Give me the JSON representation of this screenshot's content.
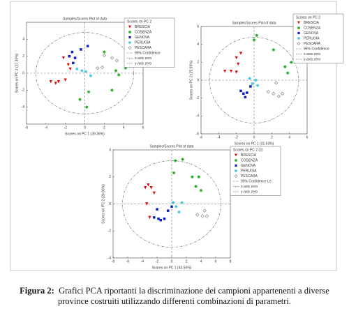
{
  "chart_data": [
    {
      "type": "scatter",
      "title": "Samples/Scores Plot of data",
      "xlabel": "Scores on PC 1 (39.36%)",
      "ylabel": "Scores on PC 2 (27.30%)",
      "legend_title": "Scores on PC 2",
      "reference_labels": [
        "95% Confidence",
        "x-axis zero",
        "y-axis zero"
      ],
      "xlim": [
        -6,
        6
      ],
      "ylim": [
        -6,
        6
      ],
      "xticks": [
        -6,
        -4,
        -2,
        0,
        2,
        4,
        6
      ],
      "yticks": [
        -4,
        -2,
        0,
        2,
        4
      ],
      "series": [
        {
          "name": "BRESCIA",
          "color": "#e01010",
          "marker": "triangle-down",
          "x": [
            -3.5,
            -3,
            -2.7,
            -2,
            -1.7,
            -2.2,
            -1.5
          ],
          "y": [
            -1,
            -1.2,
            -1,
            -0.8,
            1,
            1.8,
            0.5
          ]
        },
        {
          "name": "COSENZA",
          "color": "#22aa22",
          "marker": "star",
          "x": [
            2,
            3.2,
            3.5,
            2.8,
            0.4,
            -0.5,
            0.2,
            4.2
          ],
          "y": [
            2.5,
            0.3,
            -0.2,
            -2,
            -2.2,
            -3.1,
            -4,
            0.6
          ]
        },
        {
          "name": "GENOVA",
          "color": "#1020c0",
          "marker": "square",
          "x": [
            -1.3,
            -1.6,
            -1,
            -0.4,
            0.3,
            -1.2
          ],
          "y": [
            2.5,
            2,
            1.8,
            2.8,
            3.2,
            1.2
          ]
        },
        {
          "name": "PERUGIA",
          "color": "#40c8e0",
          "marker": "star",
          "x": [
            -0.3,
            0.1,
            0.6,
            -0.8
          ],
          "y": [
            0.3,
            0.2,
            -0.3,
            0.5
          ]
        },
        {
          "name": "PESCARA",
          "color": "#888888",
          "marker": "diamond",
          "x": [
            2,
            2.8,
            3.3,
            1.3,
            1.8
          ],
          "y": [
            2.1,
            1.8,
            1.5,
            0.6,
            0.7
          ]
        }
      ]
    },
    {
      "type": "scatter",
      "title": "Samples/Scores Plot of data",
      "xlabel": "Scores on PC 1 (31.63%)",
      "ylabel": "Scores on PC 2 (25.69%)",
      "legend_title": "Scores on PC 2",
      "reference_labels": [
        "95% Confidence",
        "x-axis zero",
        "y-axis zero"
      ],
      "xlim": [
        -6,
        6
      ],
      "ylim": [
        -6,
        6
      ],
      "xticks": [
        -6,
        -4,
        -2,
        0,
        2,
        4,
        6
      ],
      "yticks": [
        -6,
        -4,
        -2,
        0,
        2,
        4,
        6
      ],
      "series": [
        {
          "name": "BRESCIA",
          "color": "#e01010",
          "marker": "triangle-down",
          "x": [
            -3.3,
            -2.6,
            -2,
            -1.8,
            -1.5,
            -2
          ],
          "y": [
            1,
            1,
            0.9,
            1.8,
            3,
            2.5
          ]
        },
        {
          "name": "COSENZA",
          "color": "#22aa22",
          "marker": "star",
          "x": [
            0,
            0.3,
            2.2,
            3.5,
            3.8,
            4.2
          ],
          "y": [
            4.5,
            5,
            3.4,
            1.5,
            0.8,
            2
          ]
        },
        {
          "name": "GENOVA",
          "color": "#1020c0",
          "marker": "square",
          "x": [
            -1.5,
            -1.2,
            -0.8,
            -1,
            -0.4
          ],
          "y": [
            -1.2,
            -1.5,
            -1.4,
            -1.9,
            -0.7
          ]
        },
        {
          "name": "PERUGIA",
          "color": "#40c8e0",
          "marker": "star",
          "x": [
            -0.2,
            0.2,
            0.4,
            -0.5
          ],
          "y": [
            -0.4,
            0,
            -0.6,
            0.2
          ]
        },
        {
          "name": "PESCARA",
          "color": "#888888",
          "marker": "diamond",
          "x": [
            1.6,
            2.2,
            2.8,
            3.2,
            2.5
          ],
          "y": [
            -1.3,
            -1.5,
            -1.8,
            -1.5,
            -0.3
          ]
        }
      ]
    },
    {
      "type": "scatter",
      "title": "Samples/Scores Plot of data",
      "xlabel": "Scores on PC 1 (43.56%)",
      "ylabel": "Scores on PC 2 (26.86%)",
      "legend_title": "Scores on PC 2 (2)",
      "reference_labels": [
        "95% Confidence Le",
        "x-axis zero",
        "y-axis zero"
      ],
      "xlim": [
        -8,
        8
      ],
      "ylim": [
        -4,
        4
      ],
      "xticks": [
        -8,
        -6,
        -4,
        -2,
        0,
        2,
        4,
        6,
        8
      ],
      "yticks": [
        -4,
        -2,
        0,
        2,
        4
      ],
      "series": [
        {
          "name": "BRESCIA",
          "color": "#e01010",
          "marker": "triangle-down",
          "x": [
            -3.6,
            -3.2,
            -2.8,
            -3.4,
            -3,
            -2.4
          ],
          "y": [
            1.2,
            1.4,
            1.2,
            0,
            -1,
            0.8
          ]
        },
        {
          "name": "COSENZA",
          "color": "#22aa22",
          "marker": "star",
          "x": [
            0.5,
            1.5,
            0.3,
            2.8,
            3.3,
            4,
            3.7
          ],
          "y": [
            3.2,
            3.3,
            2.3,
            2,
            1.3,
            1,
            2
          ]
        },
        {
          "name": "GENOVA",
          "color": "#1020c0",
          "marker": "square",
          "x": [
            -2.4,
            -1.8,
            -1.5,
            -1,
            -0.5,
            -2,
            0
          ],
          "y": [
            -1,
            -1.1,
            -1.2,
            -1.1,
            -0.5,
            -0.4,
            -0.2
          ]
        },
        {
          "name": "PERUGIA",
          "color": "#40c8e0",
          "marker": "star",
          "x": [
            0.6,
            1,
            0.2,
            1.4
          ],
          "y": [
            -0.2,
            -0.6,
            0.1,
            0.1
          ]
        },
        {
          "name": "PESCARA",
          "color": "#888888",
          "marker": "diamond",
          "x": [
            3.5,
            4.2,
            4.8,
            4.5
          ],
          "y": [
            -0.8,
            -0.9,
            -0.9,
            -0.5
          ]
        }
      ]
    }
  ],
  "caption": {
    "label": "Figura 2:",
    "text": "Grafici PCA riportanti la discriminazione dei campioni appartenenti a diverse province costruiti utilizzando differenti combinazioni di parametri."
  }
}
